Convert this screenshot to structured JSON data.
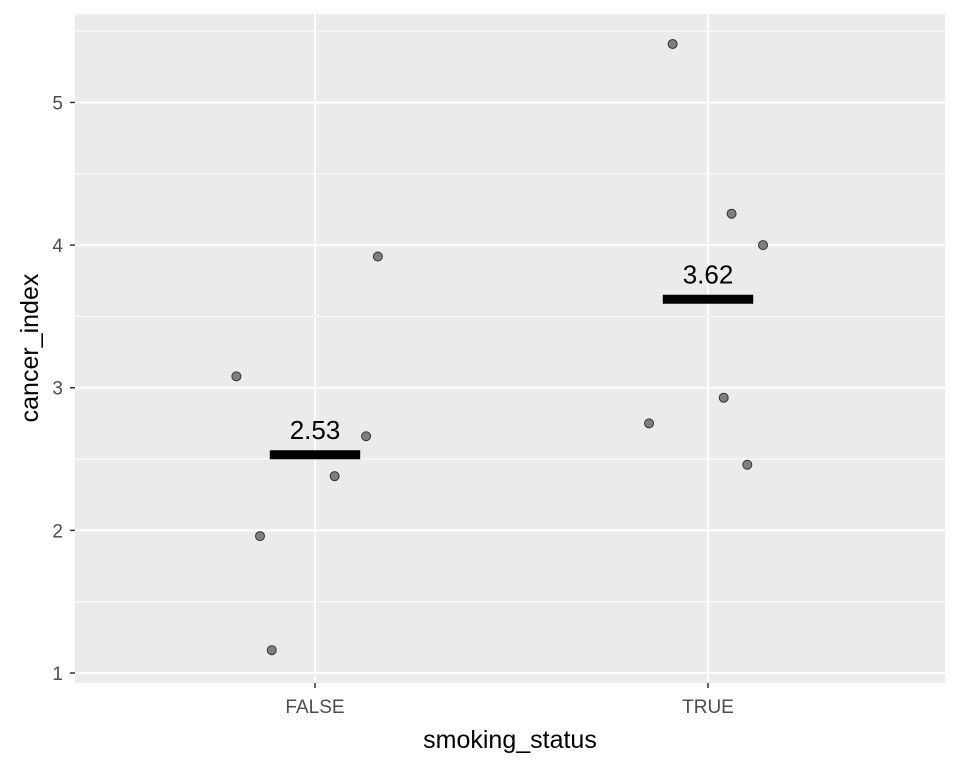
{
  "chart_data": {
    "type": "scatter",
    "subtype": "jittered strip plot with group mean bars",
    "xlabel": "smoking_status",
    "ylabel": "cancer_index",
    "categories": [
      "FALSE",
      "TRUE"
    ],
    "ylim": [
      0.93,
      5.62
    ],
    "yticks": [
      1,
      2,
      3,
      4,
      5
    ],
    "grid": true,
    "legend": "none",
    "colors": {
      "panel": "#ebebeb",
      "gridline": "#ffffff",
      "point_fill": "#7f7f7f",
      "point_stroke": "#333333",
      "mean_bar": "#000000"
    },
    "groups": [
      {
        "category": "FALSE",
        "mean": 2.53,
        "mean_label": "2.53",
        "points": [
          {
            "jitter": -0.2,
            "y": 3.08
          },
          {
            "jitter": -0.14,
            "y": 1.96
          },
          {
            "jitter": -0.11,
            "y": 1.16
          },
          {
            "jitter": 0.05,
            "y": 2.38
          },
          {
            "jitter": 0.13,
            "y": 2.66
          },
          {
            "jitter": 0.16,
            "y": 3.92
          }
        ]
      },
      {
        "category": "TRUE",
        "mean": 3.62,
        "mean_label": "3.62",
        "points": [
          {
            "jitter": -0.15,
            "y": 2.75
          },
          {
            "jitter": -0.09,
            "y": 5.41
          },
          {
            "jitter": 0.04,
            "y": 2.93
          },
          {
            "jitter": 0.06,
            "y": 4.22
          },
          {
            "jitter": 0.1,
            "y": 2.46
          },
          {
            "jitter": 0.14,
            "y": 4.0
          }
        ]
      }
    ]
  }
}
